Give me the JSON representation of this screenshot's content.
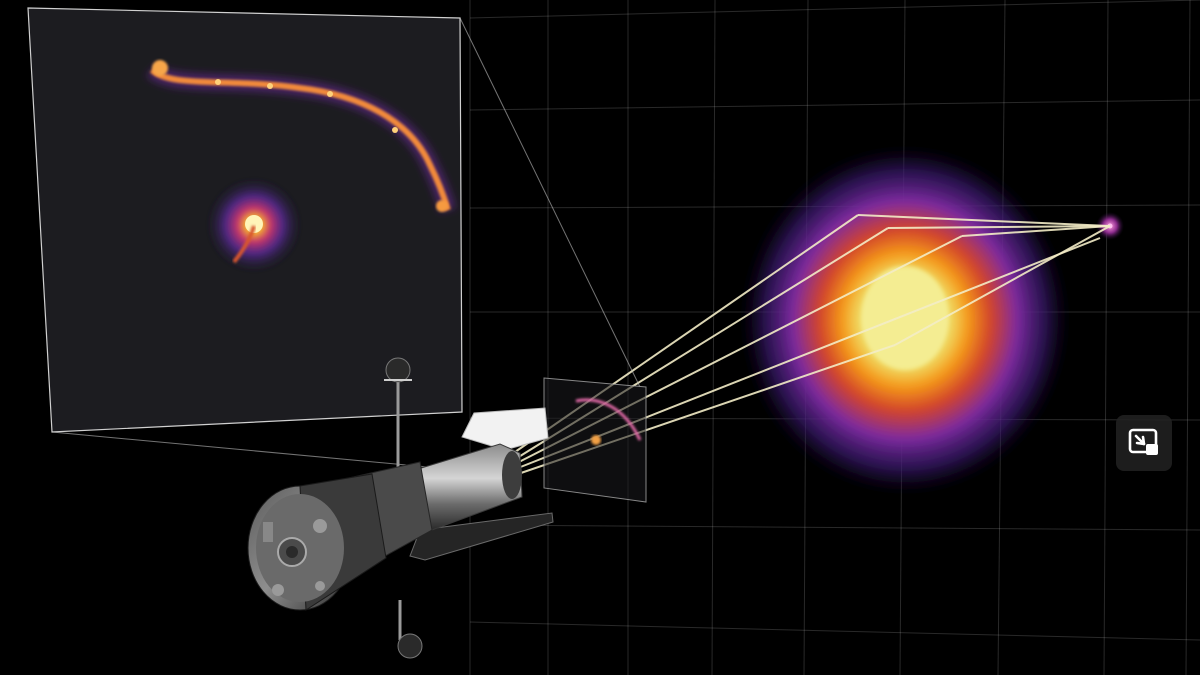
{
  "scene": {
    "description_labels": [],
    "colors": {
      "background": "#000000",
      "grid_line": "#ffffff",
      "light_ray": "#f3ecc7",
      "lens_core": "#f2e98a",
      "lens_mid": "#f28a10",
      "lens_outer": "#6a2c98",
      "arc": "#f59a3a",
      "inset_panel": "#1b1b1f",
      "inset_border": "#cfcfcf"
    },
    "icons": {
      "telescope": "hubble-telescope-illustration",
      "lens_galaxy": "foreground-galaxy-heatmap",
      "source": "background-source-point",
      "inset": "zoomed-image-inset"
    }
  },
  "controls": {
    "pip_button": {
      "icon": "picture-in-picture-exit-icon",
      "label": ""
    }
  }
}
